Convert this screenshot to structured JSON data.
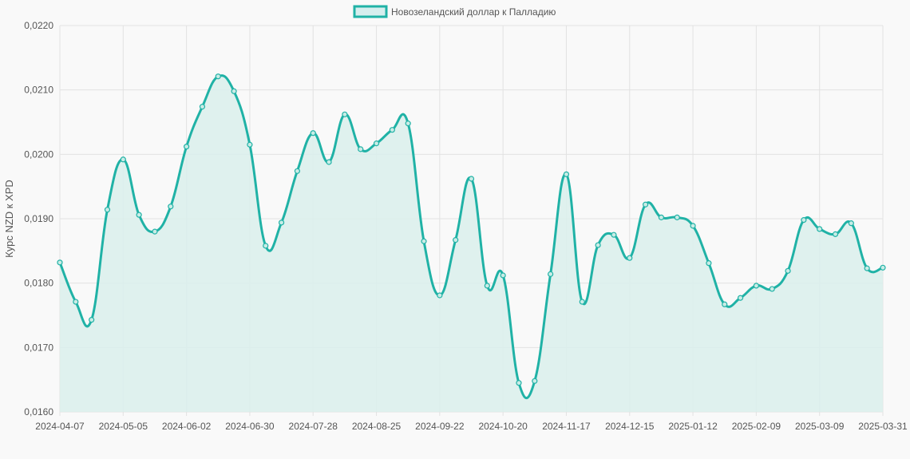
{
  "chart_data": {
    "type": "area",
    "title": "",
    "xlabel": "",
    "ylabel": "Курс NZD к XPD",
    "ylim": [
      0.016,
      0.022
    ],
    "yticks": [
      "0,0160",
      "0,0170",
      "0,0180",
      "0,0190",
      "0,0200",
      "0,0210",
      "0,0220"
    ],
    "xticks": [
      "2024-04-07",
      "2024-05-05",
      "2024-06-02",
      "2024-06-30",
      "2024-07-28",
      "2024-08-25",
      "2024-09-22",
      "2024-10-20",
      "2024-11-17",
      "2024-12-15",
      "2025-01-12",
      "2025-02-09",
      "2025-03-09",
      "2025-03-31"
    ],
    "grid": true,
    "legend_position": "top",
    "colors": {
      "line": "#20b2a6",
      "fill": "#dcf0ec",
      "legend_fill": "#d6eeee"
    },
    "series": [
      {
        "name": "Новозеландский доллар к Палладию",
        "values": [
          0.01832,
          0.01771,
          0.01743,
          0.01914,
          0.01992,
          0.01906,
          0.0188,
          0.01919,
          0.02012,
          0.02074,
          0.02121,
          0.02098,
          0.02015,
          0.01858,
          0.01894,
          0.01974,
          0.02033,
          0.01988,
          0.02062,
          0.02008,
          0.02017,
          0.02038,
          0.02048,
          0.01865,
          0.01781,
          0.01867,
          0.01962,
          0.01796,
          0.01812,
          0.01645,
          0.01648,
          0.01814,
          0.01969,
          0.01771,
          0.01859,
          0.01875,
          0.01839,
          0.01922,
          0.01902,
          0.01902,
          0.01889,
          0.01831,
          0.01767,
          0.01777,
          0.01796,
          0.01791,
          0.01819,
          0.01898,
          0.01884,
          0.01876,
          0.01893,
          0.01823,
          0.01824
        ]
      }
    ]
  }
}
